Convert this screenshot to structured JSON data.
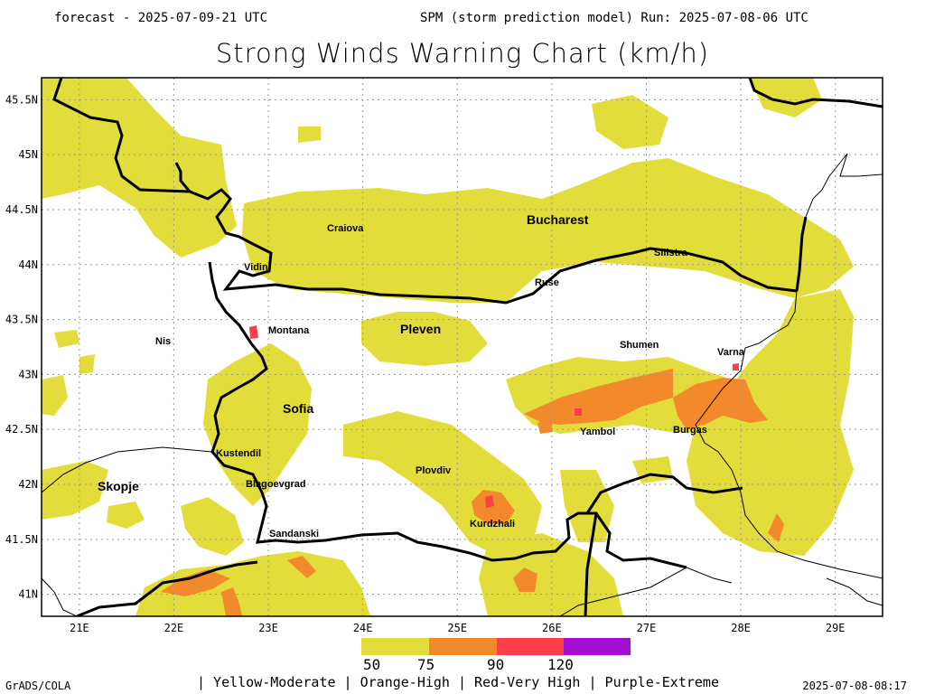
{
  "header": {
    "forecast": "forecast - 2025-07-09-21 UTC",
    "run": "SPM (storm prediction model) Run: 2025-07-08-06 UTC",
    "title": "Strong Winds Warning Chart (km/h)"
  },
  "map": {
    "lon_range": [
      20.6,
      29.5
    ],
    "lat_range": [
      40.8,
      45.7
    ],
    "lon_ticks": [
      "21E",
      "22E",
      "23E",
      "24E",
      "25E",
      "26E",
      "27E",
      "28E",
      "29E"
    ],
    "lat_ticks": [
      "45.5N",
      "45N",
      "44.5N",
      "44N",
      "43.5N",
      "43N",
      "42.5N",
      "42N",
      "41.5N",
      "41N"
    ],
    "cities": [
      {
        "name": "Craiova",
        "size": "small"
      },
      {
        "name": "Bucharest",
        "size": "big"
      },
      {
        "name": "Silistra",
        "size": "small"
      },
      {
        "name": "Vidin",
        "size": "small"
      },
      {
        "name": "Ruse",
        "size": "small"
      },
      {
        "name": "Montana",
        "size": "small"
      },
      {
        "name": "Pleven",
        "size": "big"
      },
      {
        "name": "Nis",
        "size": "small"
      },
      {
        "name": "Shumen",
        "size": "small"
      },
      {
        "name": "Varna",
        "size": "small"
      },
      {
        "name": "Sofia",
        "size": "big"
      },
      {
        "name": "Yambol",
        "size": "small"
      },
      {
        "name": "Burgas",
        "size": "small"
      },
      {
        "name": "Kustendil",
        "size": "small"
      },
      {
        "name": "Skopje",
        "size": "big"
      },
      {
        "name": "Blagoevgrad",
        "size": "small"
      },
      {
        "name": "Plovdiv",
        "size": "small"
      },
      {
        "name": "Kurdzhali",
        "size": "small"
      },
      {
        "name": "Sandanski",
        "size": "small"
      }
    ]
  },
  "legend": {
    "levels": [
      "50",
      "75",
      "90",
      "120"
    ],
    "colors": {
      "moderate": "#e3dd3b",
      "high": "#f28a2c",
      "very_high": "#ff3f48",
      "extreme": "#a50fd1"
    },
    "description": "| Yellow-Moderate | Orange-High | Red-Very High | Purple-Extreme"
  },
  "footer": {
    "credit": "GrADS/COLA",
    "timestamp": "2025-07-08-08:17"
  }
}
